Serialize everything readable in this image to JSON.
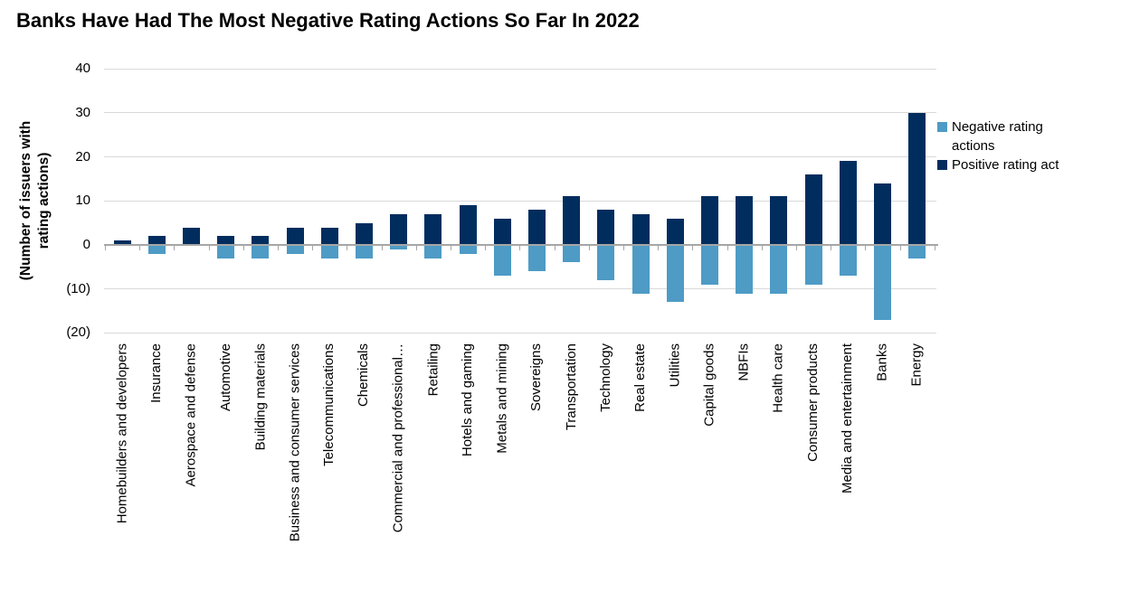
{
  "title": "Banks Have Had The Most Negative Rating Actions So Far In 2022",
  "y_axis": {
    "title_line1": "(Number of issuers with",
    "title_line2": "rating actions)",
    "ticks": [
      {
        "value": 40,
        "label": "40"
      },
      {
        "value": 30,
        "label": "30"
      },
      {
        "value": 20,
        "label": "20"
      },
      {
        "value": 10,
        "label": "10"
      },
      {
        "value": 0,
        "label": "0"
      },
      {
        "value": -10,
        "label": "(10)"
      },
      {
        "value": -20,
        "label": "(20)"
      }
    ]
  },
  "legend": {
    "items": [
      {
        "label": "Negative rating actions",
        "color": "#4e9bc5"
      },
      {
        "label": "Positive rating act",
        "color": "#002d5e"
      }
    ]
  },
  "colors": {
    "positive": "#002d5e",
    "negative": "#4e9bc5",
    "gridline": "#d9d9d9",
    "axis": "#a6a6a6"
  },
  "chart_data": {
    "type": "bar",
    "title": "Banks Have Had The Most Negative Rating Actions So Far In 2022",
    "xlabel": "",
    "ylabel": "(Number of issuers with rating actions)",
    "ylim": [
      -20,
      40
    ],
    "grid": true,
    "legend_position": "right",
    "categories": [
      "Homebuilders and developers",
      "Insurance",
      "Aerospace and defense",
      "Automotive",
      "Building materials",
      "Business and consumer services",
      "Telecommunications",
      "Chemicals",
      "Commercial and professional…",
      "Retailing",
      "Hotels and gaming",
      "Metals and mining",
      "Sovereigns",
      "Transportation",
      "Technology",
      "Real estate",
      "Utilities",
      "Capital goods",
      "NBFIs",
      "Health care",
      "Consumer products",
      "Media and entertainment",
      "Banks",
      "Energy"
    ],
    "series": [
      {
        "name": "Negative rating actions",
        "color": "#4e9bc5",
        "values": [
          0,
          -2,
          0,
          -3,
          -3,
          -2,
          -3,
          -3,
          -1,
          -3,
          -2,
          -7,
          -6,
          -4,
          -8,
          -11,
          -13,
          -9,
          -11,
          -11,
          -9,
          -7,
          -17,
          -3
        ]
      },
      {
        "name": "Positive rating act",
        "color": "#002d5e",
        "values": [
          1,
          2,
          4,
          2,
          2,
          4,
          4,
          5,
          7,
          7,
          9,
          6,
          8,
          11,
          8,
          7,
          6,
          11,
          11,
          11,
          16,
          19,
          14,
          30
        ]
      }
    ]
  }
}
